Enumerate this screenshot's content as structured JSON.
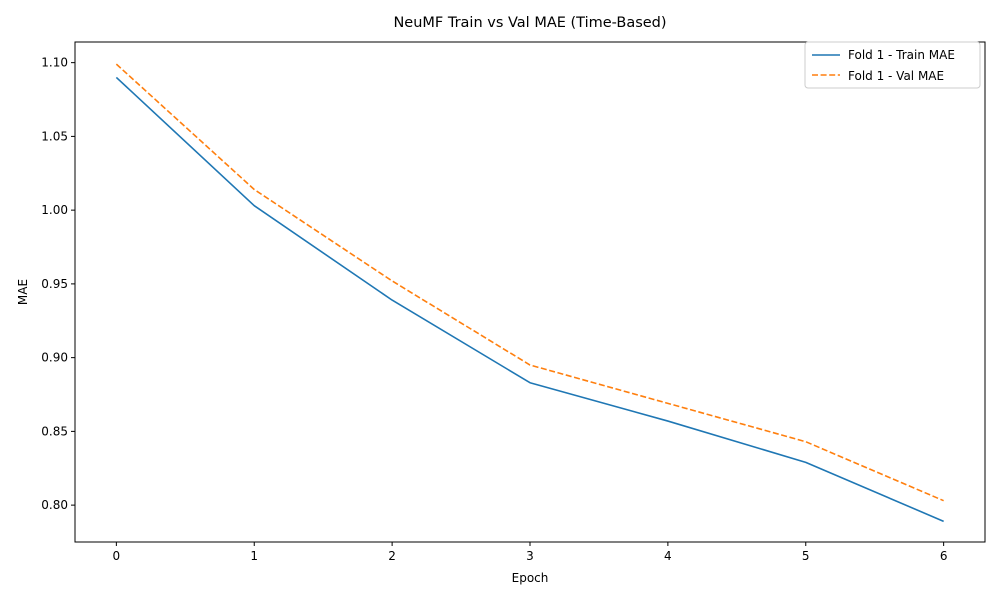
{
  "chart_data": {
    "type": "line",
    "title": "NeuMF Train vs Val MAE (Time-Based)",
    "xlabel": "Epoch",
    "ylabel": "MAE",
    "x": [
      0,
      1,
      2,
      3,
      4,
      5,
      6
    ],
    "xlim": [
      -0.3,
      6.3
    ],
    "ylim": [
      0.775,
      1.114
    ],
    "xticks": [
      0,
      1,
      2,
      3,
      4,
      5,
      6
    ],
    "yticks": [
      0.8,
      0.85,
      0.9,
      0.95,
      1.0,
      1.05,
      1.1
    ],
    "ytick_labels": [
      "0.80",
      "0.85",
      "0.90",
      "0.95",
      "1.00",
      "1.05",
      "1.10"
    ],
    "grid": false,
    "legend_position": "top-right",
    "series": [
      {
        "name": "Fold 1 - Train MAE",
        "values": [
          1.09,
          1.003,
          0.939,
          0.883,
          0.857,
          0.829,
          0.789
        ],
        "color": "#1f77b4",
        "style": "solid"
      },
      {
        "name": "Fold 1 - Val MAE",
        "values": [
          1.099,
          1.014,
          0.952,
          0.895,
          0.869,
          0.843,
          0.803
        ],
        "color": "#ff7f0e",
        "style": "dashed"
      }
    ]
  }
}
